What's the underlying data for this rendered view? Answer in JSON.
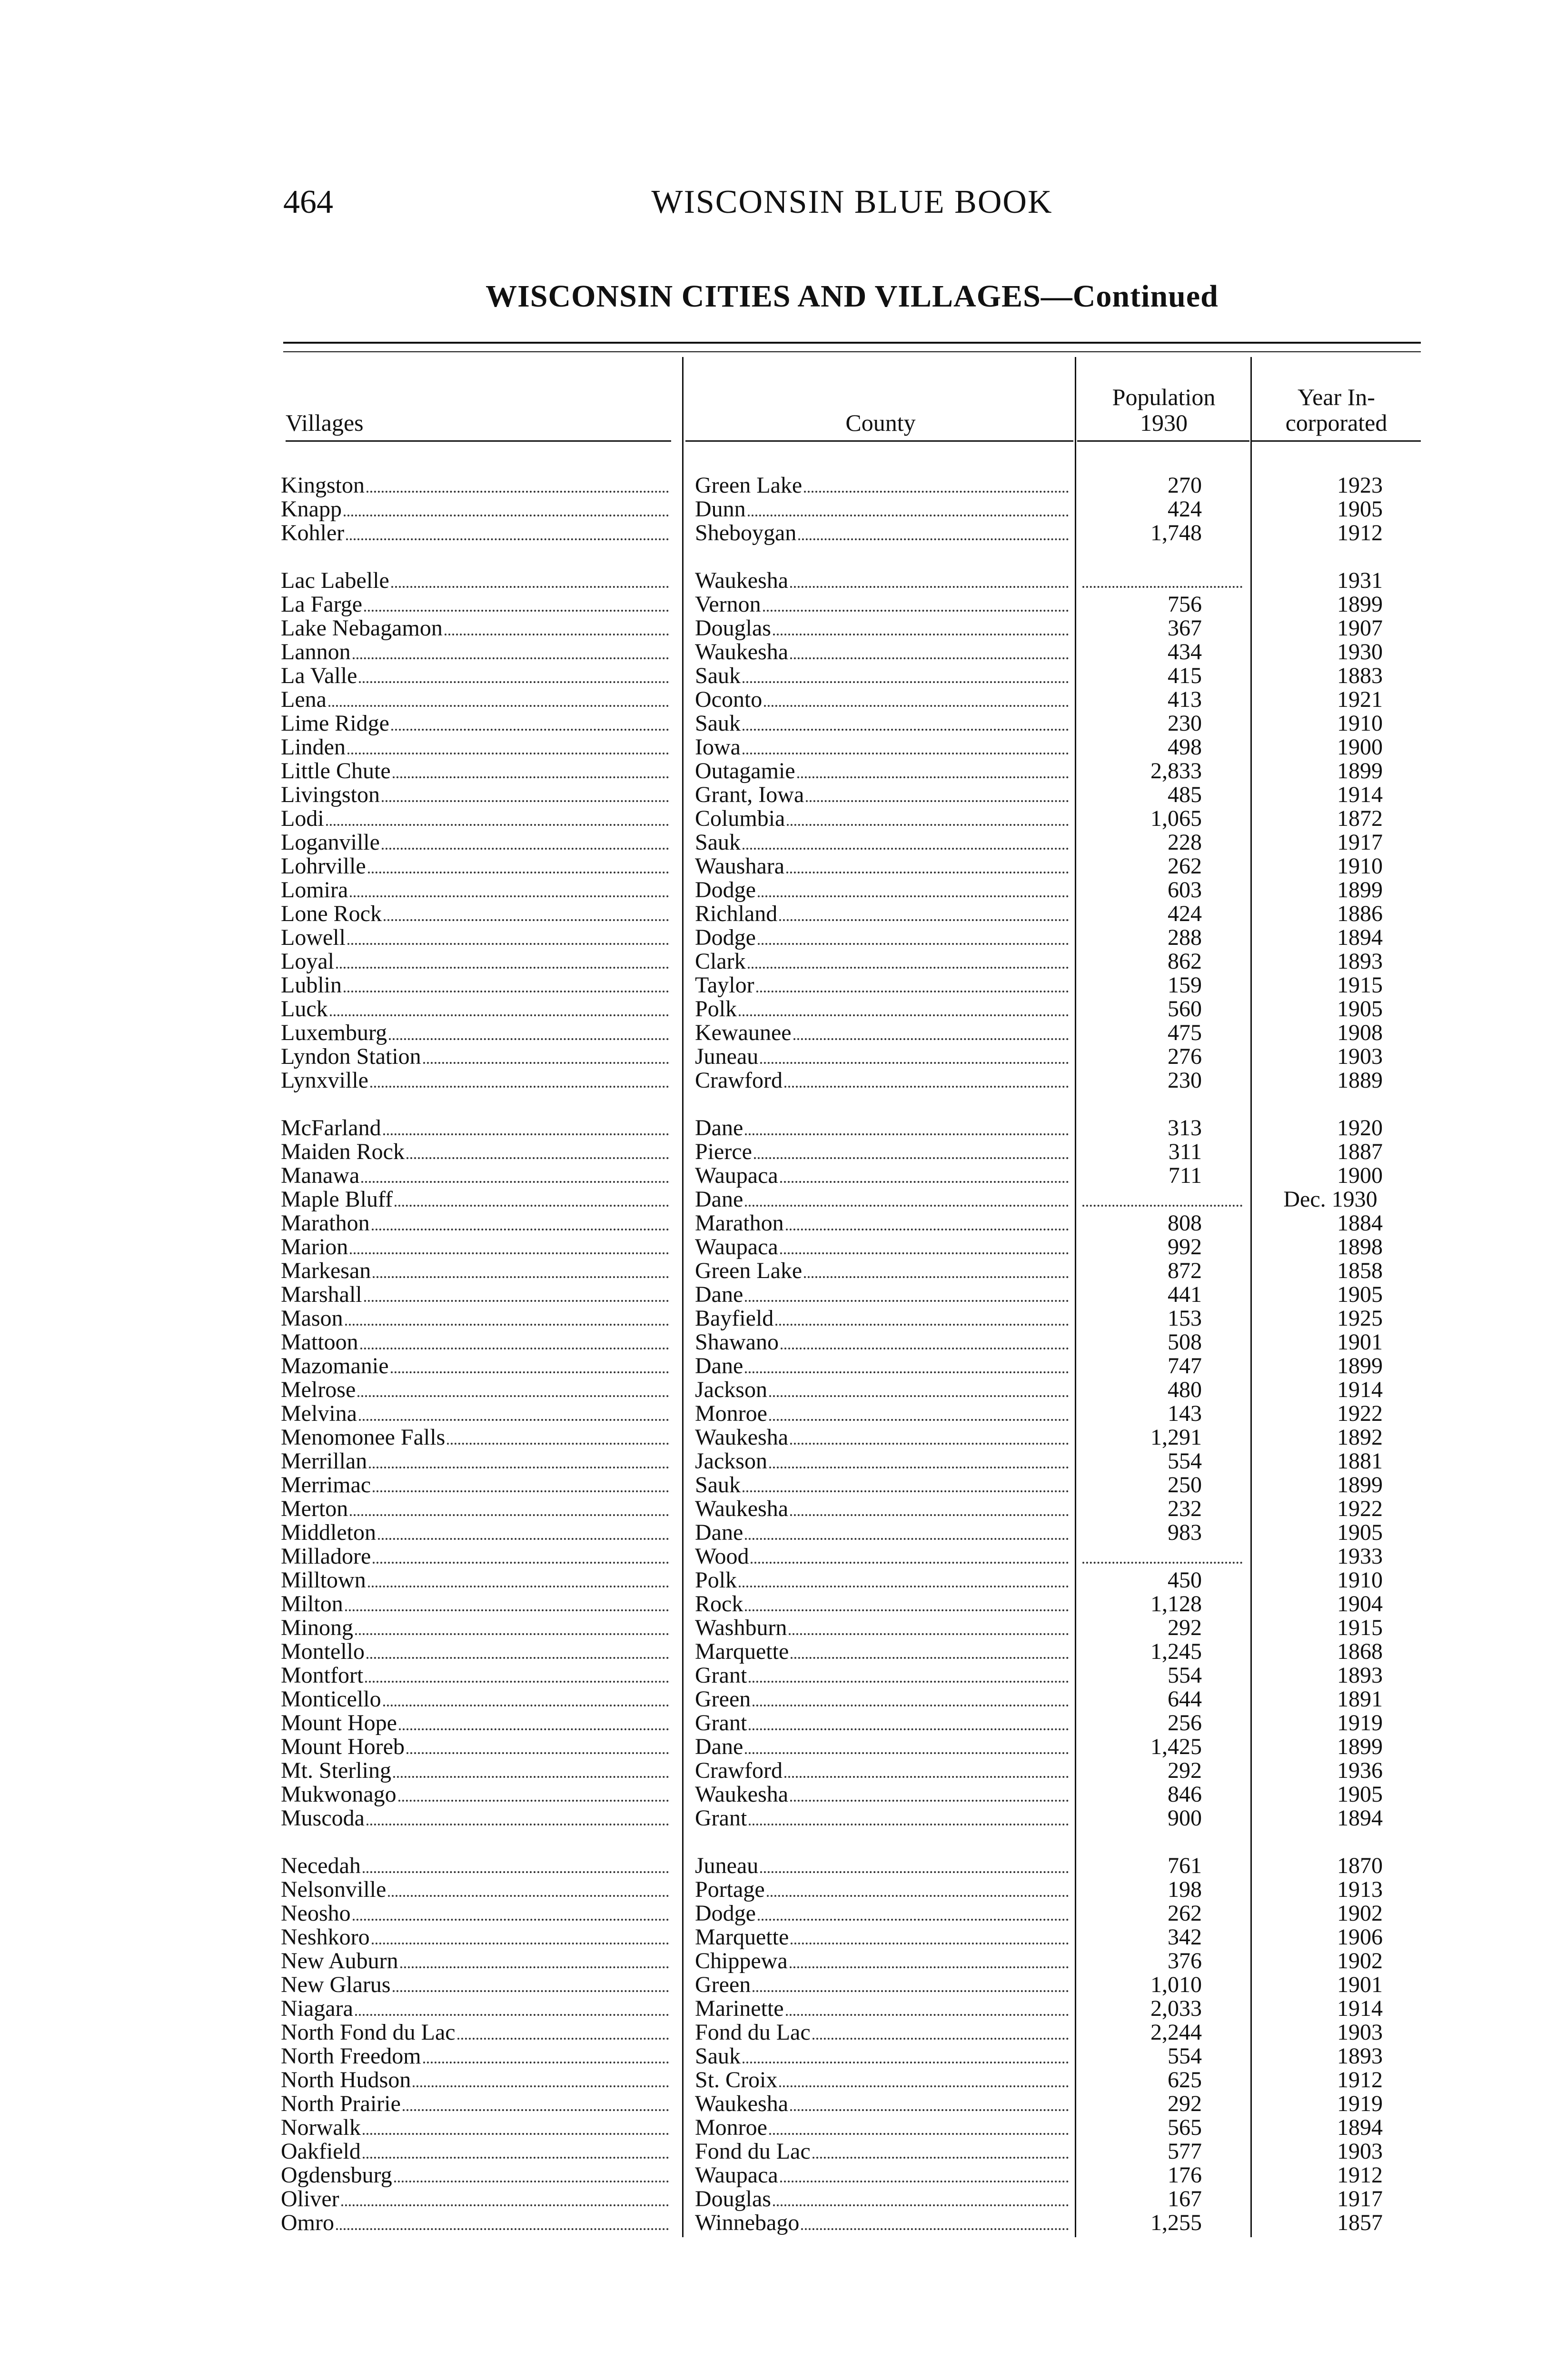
{
  "running_head": {
    "page_number": "464",
    "book_title": "WISCONSIN BLUE BOOK"
  },
  "table_title": "WISCONSIN CITIES AND VILLAGES—Continued",
  "columns": {
    "villages": "Villages",
    "county": "County",
    "population_line1": "Population",
    "population_line2": "1930",
    "year_line1": "Year In-",
    "year_line2": "corporated"
  },
  "groups": [
    {
      "rows": [
        {
          "village": "Kingston",
          "county": "Green Lake",
          "population": "270",
          "year": "1923"
        },
        {
          "village": "Knapp",
          "county": "Dunn",
          "population": "424",
          "year": "1905"
        },
        {
          "village": "Kohler",
          "county": "Sheboygan",
          "population": "1,748",
          "year": "1912"
        }
      ]
    },
    {
      "rows": [
        {
          "village": "Lac Labelle",
          "county": "Waukesha",
          "population": "",
          "year": "1931"
        },
        {
          "village": "La Farge",
          "county": "Vernon",
          "population": "756",
          "year": "1899"
        },
        {
          "village": "Lake Nebagamon",
          "county": "Douglas",
          "population": "367",
          "year": "1907"
        },
        {
          "village": "Lannon",
          "county": "Waukesha",
          "population": "434",
          "year": "1930"
        },
        {
          "village": "La Valle",
          "county": "Sauk",
          "population": "415",
          "year": "1883"
        },
        {
          "village": "Lena",
          "county": "Oconto",
          "population": "413",
          "year": "1921"
        },
        {
          "village": "Lime Ridge",
          "county": "Sauk",
          "population": "230",
          "year": "1910"
        },
        {
          "village": "Linden",
          "county": "Iowa",
          "population": "498",
          "year": "1900"
        },
        {
          "village": "Little Chute",
          "county": "Outagamie",
          "population": "2,833",
          "year": "1899"
        },
        {
          "village": "Livingston",
          "county": "Grant, Iowa",
          "population": "485",
          "year": "1914"
        },
        {
          "village": "Lodi",
          "county": "Columbia",
          "population": "1,065",
          "year": "1872"
        },
        {
          "village": "Loganville",
          "county": "Sauk",
          "population": "228",
          "year": "1917"
        },
        {
          "village": "Lohrville",
          "county": "Waushara",
          "population": "262",
          "year": "1910"
        },
        {
          "village": "Lomira",
          "county": "Dodge",
          "population": "603",
          "year": "1899"
        },
        {
          "village": "Lone Rock",
          "county": "Richland",
          "population": "424",
          "year": "1886"
        },
        {
          "village": "Lowell",
          "county": "Dodge",
          "population": "288",
          "year": "1894"
        },
        {
          "village": "Loyal",
          "county": "Clark",
          "population": "862",
          "year": "1893"
        },
        {
          "village": "Lublin",
          "county": "Taylor",
          "population": "159",
          "year": "1915"
        },
        {
          "village": "Luck",
          "county": "Polk",
          "population": "560",
          "year": "1905"
        },
        {
          "village": "Luxemburg",
          "county": "Kewaunee",
          "population": "475",
          "year": "1908"
        },
        {
          "village": "Lyndon Station",
          "county": "Juneau",
          "population": "276",
          "year": "1903"
        },
        {
          "village": "Lynxville",
          "county": "Crawford",
          "population": "230",
          "year": "1889"
        }
      ]
    },
    {
      "rows": [
        {
          "village": "McFarland",
          "county": "Dane",
          "population": "313",
          "year": "1920"
        },
        {
          "village": "Maiden Rock",
          "county": "Pierce",
          "population": "311",
          "year": "1887"
        },
        {
          "village": "Manawa",
          "county": "Waupaca",
          "population": "711",
          "year": "1900"
        },
        {
          "village": "Maple Bluff",
          "county": "Dane",
          "population": "",
          "year": "Dec. 1930"
        },
        {
          "village": "Marathon",
          "county": "Marathon",
          "population": "808",
          "year": "1884"
        },
        {
          "village": "Marion",
          "county": "Waupaca",
          "population": "992",
          "year": "1898"
        },
        {
          "village": "Markesan",
          "county": "Green Lake",
          "population": "872",
          "year": "1858"
        },
        {
          "village": "Marshall",
          "county": "Dane",
          "population": "441",
          "year": "1905"
        },
        {
          "village": "Mason",
          "county": "Bayfield",
          "population": "153",
          "year": "1925"
        },
        {
          "village": "Mattoon",
          "county": "Shawano",
          "population": "508",
          "year": "1901"
        },
        {
          "village": "Mazomanie",
          "county": "Dane",
          "population": "747",
          "year": "1899"
        },
        {
          "village": "Melrose",
          "county": "Jackson",
          "population": "480",
          "year": "1914"
        },
        {
          "village": "Melvina",
          "county": "Monroe",
          "population": "143",
          "year": "1922"
        },
        {
          "village": "Menomonee Falls",
          "county": "Waukesha",
          "population": "1,291",
          "year": "1892"
        },
        {
          "village": "Merrillan",
          "county": "Jackson",
          "population": "554",
          "year": "1881"
        },
        {
          "village": "Merrimac",
          "county": "Sauk",
          "population": "250",
          "year": "1899"
        },
        {
          "village": "Merton",
          "county": "Waukesha",
          "population": "232",
          "year": "1922"
        },
        {
          "village": "Middleton",
          "county": "Dane",
          "population": "983",
          "year": "1905"
        },
        {
          "village": "Milladore",
          "county": "Wood",
          "population": "",
          "year": "1933"
        },
        {
          "village": "Milltown",
          "county": "Polk",
          "population": "450",
          "year": "1910"
        },
        {
          "village": "Milton",
          "county": "Rock",
          "population": "1,128",
          "year": "1904"
        },
        {
          "village": "Minong",
          "county": "Washburn",
          "population": "292",
          "year": "1915"
        },
        {
          "village": "Montello",
          "county": "Marquette",
          "population": "1,245",
          "year": "1868"
        },
        {
          "village": "Montfort",
          "county": "Grant",
          "population": "554",
          "year": "1893"
        },
        {
          "village": "Monticello",
          "county": "Green",
          "population": "644",
          "year": "1891"
        },
        {
          "village": "Mount Hope",
          "county": "Grant",
          "population": "256",
          "year": "1919"
        },
        {
          "village": "Mount Horeb",
          "county": "Dane",
          "population": "1,425",
          "year": "1899"
        },
        {
          "village": "Mt. Sterling",
          "county": "Crawford",
          "population": "292",
          "year": "1936"
        },
        {
          "village": "Mukwonago",
          "county": "Waukesha",
          "population": "846",
          "year": "1905"
        },
        {
          "village": "Muscoda",
          "county": "Grant",
          "population": "900",
          "year": "1894"
        }
      ]
    },
    {
      "rows": [
        {
          "village": "Necedah",
          "county": "Juneau",
          "population": "761",
          "year": "1870"
        },
        {
          "village": "Nelsonville",
          "county": "Portage",
          "population": "198",
          "year": "1913"
        },
        {
          "village": "Neosho",
          "county": "Dodge",
          "population": "262",
          "year": "1902"
        },
        {
          "village": "Neshkoro",
          "county": "Marquette",
          "population": "342",
          "year": "1906"
        },
        {
          "village": "New Auburn",
          "county": "Chippewa",
          "population": "376",
          "year": "1902"
        },
        {
          "village": "New Glarus",
          "county": "Green",
          "population": "1,010",
          "year": "1901"
        },
        {
          "village": "Niagara",
          "county": "Marinette",
          "population": "2,033",
          "year": "1914"
        },
        {
          "village": "North Fond du Lac",
          "county": "Fond du Lac",
          "population": "2,244",
          "year": "1903"
        },
        {
          "village": "North Freedom",
          "county": "Sauk",
          "population": "554",
          "year": "1893"
        },
        {
          "village": "North Hudson",
          "county": "St. Croix",
          "population": "625",
          "year": "1912"
        },
        {
          "village": "North Prairie",
          "county": "Waukesha",
          "population": "292",
          "year": "1919"
        },
        {
          "village": "Norwalk",
          "county": "Monroe",
          "population": "565",
          "year": "1894"
        },
        {
          "village": "Oakfield",
          "county": "Fond du Lac",
          "population": "577",
          "year": "1903"
        },
        {
          "village": "Ogdensburg",
          "county": "Waupaca",
          "population": "176",
          "year": "1912"
        },
        {
          "village": "Oliver",
          "county": "Douglas",
          "population": "167",
          "year": "1917"
        },
        {
          "village": "Omro",
          "county": "Winnebago",
          "population": "1,255",
          "year": "1857"
        }
      ]
    }
  ]
}
